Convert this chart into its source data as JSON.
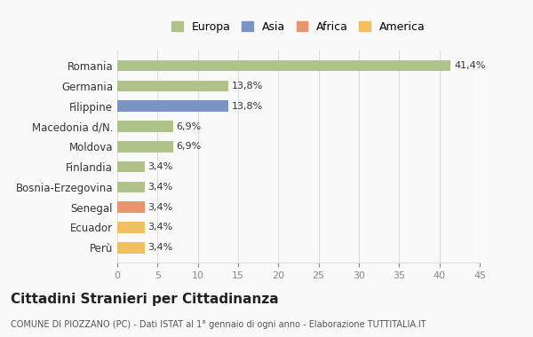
{
  "categories": [
    "Romania",
    "Germania",
    "Filippine",
    "Macedonia d/N.",
    "Moldova",
    "Finlandia",
    "Bosnia-Erzegovina",
    "Senegal",
    "Ecuador",
    "Perù"
  ],
  "values": [
    41.4,
    13.8,
    13.8,
    6.9,
    6.9,
    3.4,
    3.4,
    3.4,
    3.4,
    3.4
  ],
  "labels": [
    "41,4%",
    "13,8%",
    "13,8%",
    "6,9%",
    "6,9%",
    "3,4%",
    "3,4%",
    "3,4%",
    "3,4%",
    "3,4%"
  ],
  "colors": [
    "#aec28a",
    "#aec28a",
    "#7b93c2",
    "#aec28a",
    "#aec28a",
    "#aec28a",
    "#aec28a",
    "#e8956d",
    "#f0c060",
    "#f0c060"
  ],
  "legend_labels": [
    "Europa",
    "Asia",
    "Africa",
    "America"
  ],
  "legend_colors": [
    "#aec28a",
    "#7b93c2",
    "#e8956d",
    "#f0c060"
  ],
  "xlim": [
    0,
    45
  ],
  "xticks": [
    0,
    5,
    10,
    15,
    20,
    25,
    30,
    35,
    40,
    45
  ],
  "title": "Cittadini Stranieri per Cittadinanza",
  "subtitle": "COMUNE DI PIOZZANO (PC) - Dati ISTAT al 1° gennaio di ogni anno - Elaborazione TUTTITALIA.IT",
  "background_color": "#f9f9f9",
  "bar_height": 0.55,
  "grid_color": "#dddddd"
}
